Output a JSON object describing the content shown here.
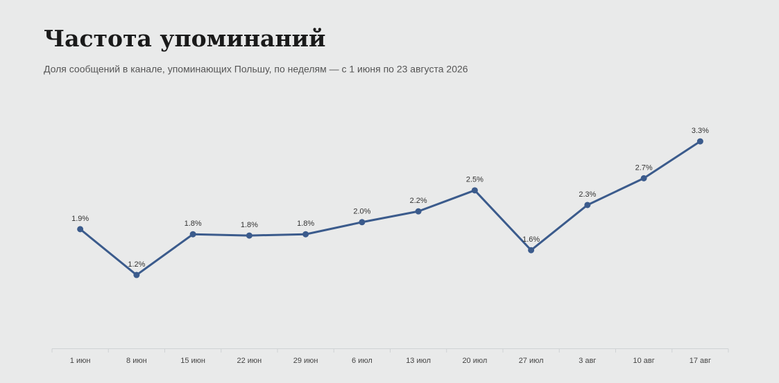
{
  "chart_data": {
    "type": "line",
    "title": "Частота упоминаний",
    "subtitle": "Доля сообщений в канале, упоминающих Польшу, по неделям — с 1 июня по 23 августа 2026",
    "categories": [
      "1 июн",
      "8 июн",
      "15 июн",
      "22 июн",
      "29 июн",
      "6 июл",
      "13 июл",
      "20 июл",
      "27 июл",
      "3 авг",
      "10 авг",
      "17 авг"
    ],
    "values": [
      1.92,
      1.2,
      1.84,
      1.82,
      1.84,
      2.03,
      2.2,
      2.53,
      1.59,
      2.3,
      2.72,
      3.3
    ],
    "value_labels": [
      "1.9%",
      "1.2%",
      "1.8%",
      "1.8%",
      "1.8%",
      "2.0%",
      "2.2%",
      "2.5%",
      "1.6%",
      "2.3%",
      "2.7%",
      "3.3%"
    ],
    "color": "#3b5b8c",
    "ylim": [
      0,
      3.5
    ]
  }
}
